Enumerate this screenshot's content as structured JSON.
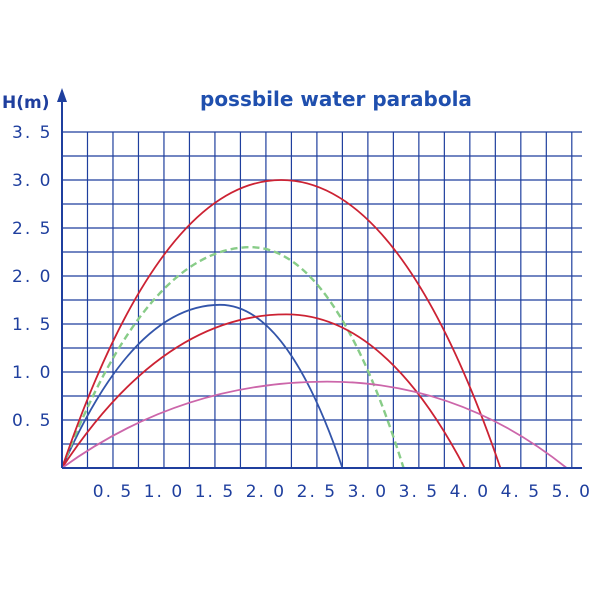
{
  "chart_data": {
    "type": "line",
    "title": "possbile water parabola",
    "ylabel": "H(m)",
    "xlabel": "",
    "xlim": [
      0,
      5.1
    ],
    "ylim": [
      0,
      3.5
    ],
    "x_ticks": [
      "0. 5",
      "1. 0",
      "1. 5",
      "2. 0",
      "2. 5",
      "3. 0",
      "3. 5",
      "4. 0",
      "4. 5",
      "5. 0"
    ],
    "x_tick_values": [
      0.5,
      1.0,
      1.5,
      2.0,
      2.5,
      3.0,
      3.5,
      4.0,
      4.5,
      5.0
    ],
    "y_ticks": [
      "0. 5",
      "1. 0",
      "1. 5",
      "2. 0",
      "2. 5",
      "3. 0",
      "3. 5"
    ],
    "y_tick_values": [
      0.5,
      1.0,
      1.5,
      2.0,
      2.5,
      3.0,
      3.5
    ],
    "grid": true,
    "series": [
      {
        "range": 2.75,
        "peak_x": 1.55,
        "peak_h": 1.7,
        "color": "#3355aa",
        "dashed": false
      },
      {
        "range": 3.35,
        "peak_x": 1.85,
        "peak_h": 2.3,
        "color": "#88cc88",
        "dashed": true
      },
      {
        "range": 4.3,
        "peak_x": 2.15,
        "peak_h": 3.0,
        "color": "#cc2233",
        "dashed": false
      },
      {
        "range": 3.95,
        "peak_x": 2.2,
        "peak_h": 1.6,
        "color": "#cc2233",
        "dashed": false
      },
      {
        "range": 4.95,
        "peak_x": 2.6,
        "peak_h": 0.9,
        "color": "#cc66aa",
        "dashed": false
      }
    ]
  }
}
